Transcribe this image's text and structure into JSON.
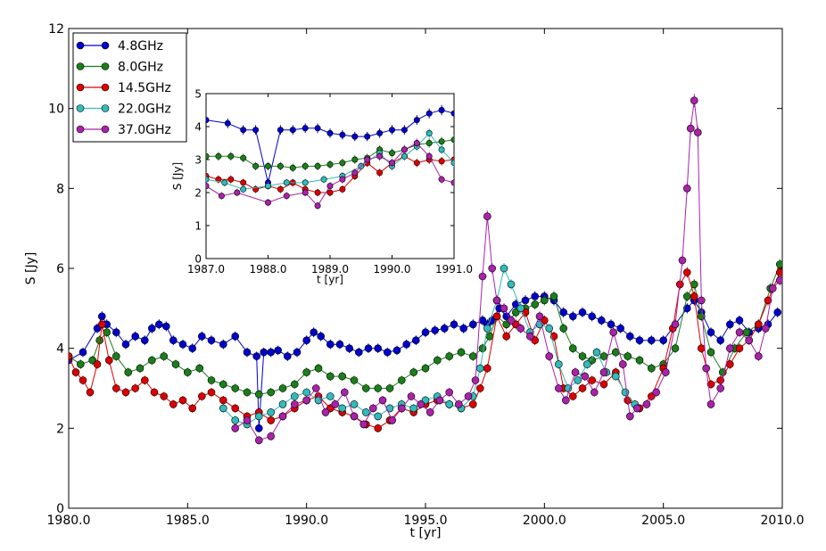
{
  "chart_data": [
    {
      "type": "line",
      "title": "",
      "xlabel": "t [yr]",
      "ylabel": "S [Jy]",
      "xlim": [
        1980,
        2010
      ],
      "ylim": [
        0,
        12
      ],
      "xticks": [
        1980,
        1985,
        1990,
        1995,
        2000,
        2005,
        2010
      ],
      "xtick_labels": [
        "1980.0",
        "1985.0",
        "1990.0",
        "1995.0",
        "2000.0",
        "2005.0",
        "2010.0"
      ],
      "yticks": [
        0,
        2,
        4,
        6,
        8,
        10,
        12
      ],
      "ytick_labels": [
        "0",
        "2",
        "4",
        "6",
        "8",
        "10",
        "12"
      ],
      "grid": false,
      "legend_position": "top-left",
      "series": [
        {
          "name": "4.8GHz",
          "color": "#0000cc",
          "x": [
            1980.0,
            1980.6,
            1981.2,
            1981.4,
            1981.6,
            1982.0,
            1982.4,
            1982.8,
            1983.2,
            1983.5,
            1983.8,
            1984.1,
            1984.4,
            1984.8,
            1985.2,
            1985.6,
            1986.0,
            1986.5,
            1987.0,
            1987.5,
            1987.9,
            1988.0,
            1988.2,
            1988.5,
            1988.8,
            1989.2,
            1989.6,
            1990.0,
            1990.3,
            1990.6,
            1991.0,
            1991.4,
            1991.8,
            1992.2,
            1992.6,
            1993.0,
            1993.4,
            1993.8,
            1994.2,
            1994.6,
            1995.0,
            1995.4,
            1995.8,
            1996.2,
            1996.6,
            1997.0,
            1997.4,
            1997.6,
            1997.8,
            1998.1,
            1998.4,
            1998.8,
            1999.2,
            1999.6,
            2000.0,
            2000.4,
            2000.8,
            2001.2,
            2001.6,
            2002.0,
            2002.4,
            2002.8,
            2003.2,
            2003.6,
            2004.0,
            2004.5,
            2005.0,
            2005.5,
            2006.0,
            2006.3,
            2006.6,
            2007.0,
            2007.4,
            2007.8,
            2008.2,
            2008.6,
            2009.0,
            2009.4,
            2009.8
          ],
          "y": [
            3.7,
            3.9,
            4.5,
            4.8,
            4.6,
            4.4,
            4.1,
            4.3,
            4.2,
            4.5,
            4.6,
            4.55,
            4.2,
            4.1,
            4.0,
            4.3,
            4.2,
            4.1,
            4.3,
            3.9,
            3.8,
            2.0,
            3.9,
            3.9,
            3.95,
            3.8,
            3.9,
            4.2,
            4.4,
            4.3,
            4.1,
            4.1,
            4.0,
            3.9,
            4.0,
            4.0,
            3.9,
            3.95,
            4.1,
            4.2,
            4.4,
            4.45,
            4.5,
            4.6,
            4.5,
            4.6,
            4.7,
            4.6,
            4.7,
            5.0,
            4.8,
            5.1,
            5.2,
            5.3,
            5.3,
            5.2,
            4.9,
            4.8,
            4.9,
            4.8,
            4.7,
            4.6,
            4.5,
            4.3,
            4.2,
            4.2,
            4.2,
            4.6,
            5.0,
            5.2,
            4.9,
            4.4,
            4.2,
            4.6,
            4.7,
            4.4,
            4.5,
            4.6,
            4.9
          ]
        },
        {
          "name": "8.0GHz",
          "color": "#1a7f1a",
          "x": [
            1980.0,
            1980.5,
            1981.0,
            1981.3,
            1981.6,
            1982.0,
            1982.5,
            1983.0,
            1983.5,
            1984.0,
            1984.5,
            1985.0,
            1985.5,
            1986.0,
            1986.5,
            1987.0,
            1987.5,
            1988.0,
            1988.5,
            1989.0,
            1989.5,
            1990.0,
            1990.5,
            1991.0,
            1991.5,
            1992.0,
            1992.5,
            1993.0,
            1993.5,
            1994.0,
            1994.5,
            1995.0,
            1995.5,
            1996.0,
            1996.5,
            1997.0,
            1997.4,
            1997.7,
            1998.0,
            1998.4,
            1998.8,
            1999.2,
            1999.6,
            2000.0,
            2000.4,
            2000.8,
            2001.2,
            2001.6,
            2002.0,
            2002.5,
            2003.0,
            2003.5,
            2004.0,
            2004.5,
            2005.0,
            2005.5,
            2006.0,
            2006.3,
            2006.6,
            2007.0,
            2007.5,
            2008.0,
            2008.5,
            2009.0,
            2009.5,
            2009.9
          ],
          "y": [
            3.8,
            3.6,
            3.7,
            4.2,
            4.4,
            3.8,
            3.4,
            3.5,
            3.7,
            3.8,
            3.6,
            3.4,
            3.5,
            3.2,
            3.1,
            3.0,
            2.9,
            2.85,
            2.9,
            3.0,
            3.1,
            3.4,
            3.5,
            3.3,
            3.3,
            3.2,
            3.0,
            3.0,
            3.0,
            3.2,
            3.4,
            3.5,
            3.7,
            3.8,
            3.9,
            3.8,
            4.0,
            4.3,
            4.8,
            4.6,
            4.9,
            5.0,
            5.1,
            5.2,
            5.3,
            4.5,
            4.0,
            3.8,
            3.7,
            3.8,
            3.9,
            3.8,
            3.7,
            3.5,
            3.6,
            4.0,
            5.3,
            5.6,
            4.8,
            3.9,
            3.4,
            4.0,
            4.4,
            4.6,
            5.5,
            6.1
          ]
        },
        {
          "name": "14.5GHz",
          "color": "#dd0000",
          "x": [
            1980.0,
            1980.3,
            1980.6,
            1980.9,
            1981.2,
            1981.4,
            1981.7,
            1982.0,
            1982.4,
            1982.8,
            1983.2,
            1983.6,
            1984.0,
            1984.4,
            1984.8,
            1985.2,
            1985.6,
            1986.0,
            1986.5,
            1987.0,
            1987.5,
            1988.0,
            1988.5,
            1989.0,
            1989.5,
            1990.0,
            1990.5,
            1991.0,
            1991.5,
            1992.0,
            1992.5,
            1993.0,
            1993.5,
            1994.0,
            1994.5,
            1995.0,
            1995.5,
            1996.0,
            1996.5,
            1997.0,
            1997.3,
            1997.6,
            1998.0,
            1998.4,
            1998.8,
            1999.2,
            1999.6,
            2000.0,
            2000.4,
            2000.8,
            2001.2,
            2001.6,
            2002.0,
            2002.5,
            2003.0,
            2003.5,
            2004.0,
            2004.5,
            2005.0,
            2005.4,
            2005.7,
            2006.0,
            2006.3,
            2006.6,
            2007.0,
            2007.4,
            2007.8,
            2008.2,
            2008.6,
            2009.0,
            2009.4,
            2009.9
          ],
          "y": [
            3.8,
            3.4,
            3.2,
            2.9,
            3.6,
            4.6,
            3.7,
            3.0,
            2.9,
            3.0,
            3.2,
            2.9,
            2.8,
            2.6,
            2.7,
            2.5,
            2.8,
            2.9,
            2.7,
            2.5,
            2.3,
            2.4,
            2.2,
            2.3,
            2.5,
            2.7,
            2.8,
            2.5,
            2.4,
            2.3,
            2.1,
            2.0,
            2.2,
            2.5,
            2.4,
            2.6,
            2.7,
            2.6,
            2.5,
            2.6,
            3.0,
            3.5,
            4.8,
            4.3,
            4.6,
            4.9,
            4.2,
            4.7,
            4.3,
            3.0,
            2.8,
            3.0,
            3.2,
            3.1,
            3.4,
            2.7,
            2.5,
            2.8,
            3.5,
            4.5,
            5.6,
            5.9,
            5.3,
            4.0,
            3.1,
            3.2,
            3.6,
            4.0,
            4.2,
            4.6,
            5.2,
            5.9
          ]
        },
        {
          "name": "22.0GHz",
          "color": "#33bbbb",
          "x": [
            1986.5,
            1987.0,
            1987.5,
            1988.0,
            1988.5,
            1989.0,
            1989.5,
            1990.0,
            1990.5,
            1991.0,
            1991.5,
            1992.0,
            1992.5,
            1993.0,
            1993.5,
            1994.0,
            1994.5,
            1995.0,
            1995.5,
            1996.0,
            1996.5,
            1997.0,
            1997.3,
            1997.6,
            1998.0,
            1998.3,
            1998.6,
            1999.0,
            1999.4,
            1999.8,
            2000.2,
            2000.6,
            2001.0,
            2001.4,
            2001.8,
            2002.2,
            2002.6,
            2003.0,
            2003.4,
            2003.8
          ],
          "y": [
            2.5,
            2.2,
            2.1,
            2.3,
            2.4,
            2.6,
            2.8,
            2.9,
            2.7,
            2.8,
            2.5,
            2.6,
            2.4,
            2.3,
            2.5,
            2.6,
            2.5,
            2.7,
            2.8,
            2.6,
            2.5,
            2.8,
            3.5,
            4.5,
            5.2,
            6.0,
            5.6,
            5.0,
            4.4,
            4.6,
            4.5,
            3.6,
            3.0,
            3.2,
            3.6,
            3.9,
            3.4,
            3.3,
            2.9,
            2.6
          ]
        },
        {
          "name": "37.0GHz",
          "color": "#aa22aa",
          "x": [
            1987.0,
            1987.5,
            1988.0,
            1988.5,
            1989.0,
            1989.5,
            1990.0,
            1990.4,
            1990.8,
            1991.2,
            1991.6,
            1992.0,
            1992.4,
            1992.8,
            1993.2,
            1993.6,
            1994.0,
            1994.4,
            1994.8,
            1995.2,
            1995.6,
            1996.0,
            1996.4,
            1996.8,
            1997.1,
            1997.4,
            1997.6,
            1997.8,
            1998.0,
            1998.3,
            1998.6,
            1999.0,
            1999.4,
            1999.8,
            2000.2,
            2000.6,
            2000.9,
            2001.3,
            2001.7,
            2002.1,
            2002.5,
            2002.9,
            2003.3,
            2003.6,
            2003.9,
            2004.3,
            2004.7,
            2005.1,
            2005.5,
            2005.8,
            2006.0,
            2006.15,
            2006.3,
            2006.45,
            2006.6,
            2006.8,
            2007.0,
            2007.4,
            2007.8,
            2008.2,
            2008.6,
            2009.0,
            2009.3,
            2009.6,
            2009.9
          ],
          "y": [
            2.0,
            2.2,
            1.7,
            1.8,
            2.3,
            2.6,
            2.7,
            3.0,
            2.4,
            2.6,
            2.9,
            2.3,
            2.1,
            2.5,
            2.7,
            2.2,
            2.5,
            2.8,
            2.6,
            2.4,
            2.7,
            2.9,
            2.6,
            2.8,
            3.2,
            5.8,
            7.3,
            6.0,
            5.2,
            5.0,
            4.7,
            4.5,
            4.3,
            4.8,
            3.8,
            3.0,
            2.7,
            3.4,
            3.3,
            2.9,
            3.4,
            4.4,
            3.6,
            2.3,
            2.5,
            2.6,
            2.9,
            3.4,
            4.6,
            6.2,
            8.0,
            9.5,
            10.2,
            9.4,
            5.2,
            3.5,
            2.6,
            3.0,
            4.0,
            4.4,
            4.2,
            3.8,
            4.5,
            5.5,
            5.7
          ]
        }
      ]
    },
    {
      "type": "line",
      "title": "",
      "xlabel": "t [yr]",
      "ylabel": "S [Jy]",
      "xlim": [
        1987,
        1991
      ],
      "ylim": [
        0,
        5
      ],
      "xticks": [
        1987,
        1988,
        1989,
        1990,
        1991
      ],
      "xtick_labels": [
        "1987.0",
        "1988.0",
        "1989.0",
        "1990.0",
        "1991.0"
      ],
      "yticks": [
        0,
        1,
        2,
        3,
        4,
        5
      ],
      "ytick_labels": [
        "0",
        "1",
        "2",
        "3",
        "4",
        "5"
      ],
      "grid": false,
      "series": [
        {
          "name": "4.8GHz",
          "color": "#0000cc",
          "x": [
            1987.0,
            1987.35,
            1987.6,
            1987.8,
            1988.0,
            1988.2,
            1988.4,
            1988.6,
            1988.8,
            1989.0,
            1989.2,
            1989.4,
            1989.6,
            1989.8,
            1990.0,
            1990.2,
            1990.4,
            1990.6,
            1990.8,
            1991.0
          ],
          "y": [
            4.2,
            4.1,
            3.9,
            3.9,
            2.3,
            3.9,
            3.9,
            3.95,
            3.95,
            3.8,
            3.75,
            3.7,
            3.7,
            3.8,
            3.9,
            3.9,
            4.2,
            4.4,
            4.5,
            4.4
          ]
        },
        {
          "name": "8.0GHz",
          "color": "#1a7f1a",
          "x": [
            1987.0,
            1987.2,
            1987.4,
            1987.6,
            1987.8,
            1988.0,
            1988.2,
            1988.4,
            1988.6,
            1988.8,
            1989.0,
            1989.2,
            1989.4,
            1989.6,
            1989.8,
            1990.0,
            1990.2,
            1990.4,
            1990.6,
            1990.8,
            1991.0
          ],
          "y": [
            3.1,
            3.1,
            3.1,
            3.05,
            2.8,
            2.8,
            2.8,
            2.75,
            2.8,
            2.8,
            2.85,
            2.9,
            3.0,
            3.05,
            3.3,
            3.2,
            3.3,
            3.45,
            3.5,
            3.55,
            3.6
          ]
        },
        {
          "name": "14.5GHz",
          "color": "#dd0000",
          "x": [
            1987.0,
            1987.2,
            1987.4,
            1987.6,
            1987.8,
            1988.0,
            1988.2,
            1988.4,
            1988.6,
            1988.8,
            1989.0,
            1989.2,
            1989.4,
            1989.6,
            1989.8,
            1990.0,
            1990.2,
            1990.4,
            1990.6,
            1990.8,
            1991.0
          ],
          "y": [
            2.5,
            2.4,
            2.4,
            2.3,
            2.1,
            2.2,
            2.1,
            2.3,
            2.1,
            2.0,
            2.0,
            2.1,
            2.5,
            2.9,
            2.6,
            2.9,
            3.1,
            2.9,
            3.0,
            2.95,
            3.0
          ]
        },
        {
          "name": "22.0GHz",
          "color": "#33bbbb",
          "x": [
            1987.0,
            1987.3,
            1987.6,
            1988.0,
            1988.3,
            1988.6,
            1988.9,
            1989.2,
            1989.5,
            1989.8,
            1990.0,
            1990.2,
            1990.4,
            1990.6,
            1990.8,
            1991.0
          ],
          "y": [
            2.4,
            2.3,
            2.1,
            2.2,
            2.3,
            2.3,
            2.4,
            2.5,
            2.8,
            3.2,
            2.8,
            3.1,
            3.4,
            3.8,
            3.3,
            2.9
          ]
        },
        {
          "name": "37.0GHz",
          "color": "#aa22aa",
          "x": [
            1987.0,
            1987.25,
            1987.5,
            1988.0,
            1988.3,
            1988.6,
            1988.8,
            1989.0,
            1989.2,
            1989.4,
            1989.6,
            1989.8,
            1990.0,
            1990.2,
            1990.4,
            1990.6,
            1990.8,
            1991.0
          ],
          "y": [
            2.2,
            1.9,
            2.0,
            1.7,
            1.9,
            2.0,
            1.6,
            2.2,
            2.4,
            2.6,
            3.0,
            3.1,
            2.9,
            3.3,
            3.5,
            3.1,
            2.4,
            2.3
          ]
        }
      ]
    }
  ]
}
